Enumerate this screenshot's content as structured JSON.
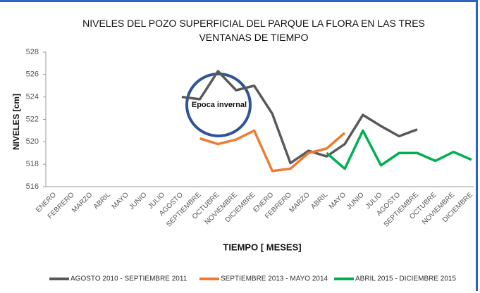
{
  "chart_data": {
    "type": "line",
    "title": "NIVELES DEL POZO SUPERFICIAL DEL PARQUE LA FLORA EN LAS TRES VENTANAS DE TIEMPO",
    "y_label": "NIVELES [cm]",
    "x_label": "TIEMPO [ MESES]",
    "annotation": "Epoca invernal",
    "categories": [
      "ENERO",
      "FEBRERO",
      "MARZO",
      "ABRIL",
      "MAYO",
      "JUNIO",
      "JULIO",
      "AGOSTO",
      "SEPTIEMBRE",
      "OCTUBRE",
      "NOVIEMBRE",
      "DICIEMBRE",
      "ENERO",
      "FEBRERO",
      "MARZO",
      "ABRIL",
      "MAYO",
      "JUNIO",
      "JULIO",
      "AGOSTO",
      "SEPTIEMBRE",
      "OCTUBRE",
      "NOVIEMBRE",
      "DICIEMBRE"
    ],
    "series": [
      {
        "name": "AGOSTO 2010 - SEPTIEMBRE 2011",
        "color": "#595959",
        "values": [
          null,
          null,
          null,
          null,
          null,
          null,
          null,
          524.0,
          523.8,
          526.3,
          524.6,
          525.0,
          522.5,
          518.1,
          519.2,
          518.7,
          519.8,
          522.4,
          521.4,
          520.5,
          521.1,
          null,
          null,
          null
        ]
      },
      {
        "name": "SEPTIEMBRE 2013 - MAYO 2014",
        "color": "#ed7d31",
        "values": [
          null,
          null,
          null,
          null,
          null,
          null,
          null,
          null,
          520.3,
          519.8,
          520.2,
          521.0,
          517.4,
          517.6,
          519.0,
          519.4,
          520.8,
          null,
          null,
          null,
          null,
          null,
          null,
          null
        ]
      },
      {
        "name": "ABRIL 2015 - DICIEMBRE 2015",
        "color": "#00b050",
        "values": [
          null,
          null,
          null,
          null,
          null,
          null,
          null,
          null,
          null,
          null,
          null,
          null,
          null,
          null,
          null,
          519.0,
          517.6,
          521.0,
          517.9,
          519.0,
          519.0,
          518.3,
          519.1,
          518.4
        ]
      }
    ],
    "ylim": [
      516,
      528
    ],
    "yticks": [
      516,
      518,
      520,
      522,
      524,
      526,
      528
    ],
    "grid": false,
    "legend": "bottom"
  }
}
